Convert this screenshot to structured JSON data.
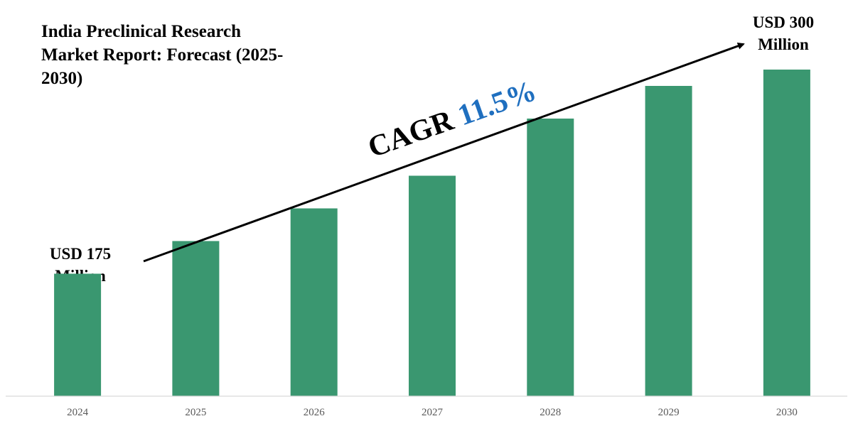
{
  "chart_data": {
    "type": "bar",
    "title": "India Preclinical Research Market Report: Forecast (2025-2030)",
    "categories": [
      "2024",
      "2025",
      "2026",
      "2027",
      "2028",
      "2029",
      "2030"
    ],
    "values": [
      175,
      195,
      215,
      235,
      270,
      290,
      300
    ],
    "ylim": [
      100,
      310
    ],
    "grid": false,
    "legend": "none",
    "bar_color": "#3a9770",
    "axis_color": "#d9d9d9",
    "tick_color": "#595959",
    "annotations": {
      "start_label": [
        "USD 175",
        "Million"
      ],
      "end_label": [
        "USD 300",
        "Million"
      ],
      "cagr_prefix": "CAGR ",
      "cagr_value": "11.5%",
      "cagr_prefix_color": "#000000",
      "cagr_value_color": "#1f6fbf"
    }
  }
}
